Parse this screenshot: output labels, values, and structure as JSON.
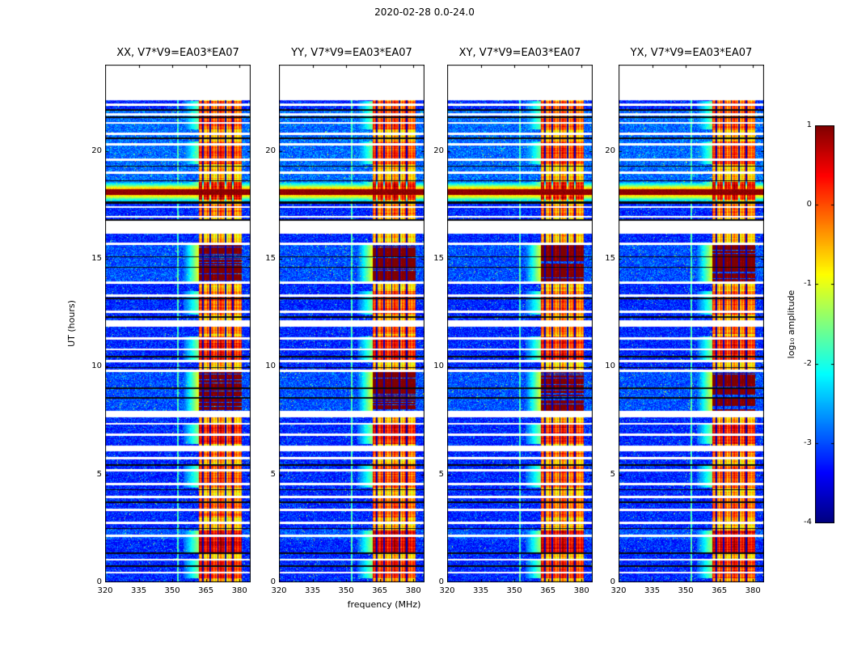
{
  "chart_data": {
    "type": "heatmap",
    "title": "2020-02-28 0.0-24.0",
    "xlabel": "frequency (MHz)",
    "ylabel": "UT (hours)",
    "value_label": "log₁₀ amplitude",
    "colormap": "jet",
    "panel_titles": [
      "XX, V7*V9=EA03*EA07",
      "YY, V7*V9=EA03*EA07",
      "XY, V7*V9=EA03*EA07",
      "YX, V7*V9=EA03*EA07"
    ],
    "x_range": [
      320,
      385
    ],
    "y_range": [
      0,
      24
    ],
    "value_range": [
      -4,
      1
    ],
    "x_ticks": [
      320,
      335,
      350,
      365,
      380
    ],
    "y_ticks": [
      0,
      5,
      10,
      15,
      20
    ],
    "colorbar_ticks": [
      1,
      0,
      -1,
      -2,
      -3,
      -4
    ],
    "data_top_hour": 22.35,
    "rfi_band": {
      "f0": 362,
      "f1": 381
    },
    "edge_bleed": [
      355,
      362
    ],
    "vertical_line_mhz": 352.5,
    "dark_band_lines_mhz": [
      363.6,
      367.0,
      370.4,
      373.8,
      377.2
    ],
    "flare": {
      "t": 18.1,
      "core_hw": 0.13,
      "halo_hw": 0.5
    },
    "bursts": [
      [
        13.95,
        15.65,
        1.9
      ],
      [
        7.95,
        9.75,
        1.9
      ],
      [
        17.75,
        18.55,
        1.1
      ],
      [
        0.2,
        1.1,
        0.8
      ],
      [
        1.4,
        2.4,
        1.2
      ],
      [
        3.0,
        4.0,
        0.5
      ],
      [
        4.4,
        5.4,
        0.6
      ],
      [
        5.8,
        6.1,
        0.5
      ],
      [
        6.4,
        7.3,
        0.9
      ],
      [
        10.3,
        11.4,
        0.9
      ],
      [
        11.5,
        11.9,
        0.5
      ],
      [
        12.4,
        13.5,
        0.6
      ],
      [
        16.9,
        17.5,
        0.4
      ],
      [
        19.4,
        20.45,
        0.7
      ],
      [
        21.0,
        22.3,
        0.6
      ]
    ],
    "bg_boost": [
      [
        17.7,
        21.9,
        0.5
      ],
      [
        13.95,
        15.65,
        0.3
      ],
      [
        7.95,
        9.75,
        0.3
      ],
      [
        2.0,
        2.45,
        0.35
      ]
    ],
    "white_gaps": [
      [
        16.45,
        0.3
      ],
      [
        12.0,
        0.15
      ],
      [
        7.8,
        0.15
      ],
      [
        6.2,
        0.13
      ],
      [
        22.15,
        0.05
      ],
      [
        21.7,
        0.05
      ],
      [
        21.3,
        0.05
      ],
      [
        20.8,
        0.05
      ],
      [
        20.3,
        0.05
      ],
      [
        19.6,
        0.05
      ],
      [
        19.0,
        0.05
      ],
      [
        17.4,
        0.05
      ],
      [
        16.95,
        0.05
      ],
      [
        15.7,
        0.05
      ],
      [
        13.9,
        0.05
      ],
      [
        13.3,
        0.05
      ],
      [
        12.55,
        0.05
      ],
      [
        11.3,
        0.05
      ],
      [
        10.8,
        0.05
      ],
      [
        10.25,
        0.05
      ],
      [
        9.8,
        0.05
      ],
      [
        7.35,
        0.05
      ],
      [
        6.85,
        0.05
      ],
      [
        5.75,
        0.06
      ],
      [
        5.2,
        0.05
      ],
      [
        4.55,
        0.05
      ],
      [
        3.95,
        0.05
      ],
      [
        3.35,
        0.05
      ],
      [
        2.75,
        0.05
      ],
      [
        2.15,
        0.05
      ],
      [
        1.05,
        0.05
      ],
      [
        0.45,
        0.05
      ]
    ],
    "black_lines": [
      [
        21.55,
        0.04
      ],
      [
        20.6,
        0.04
      ],
      [
        19.3,
        0.03
      ],
      [
        17.6,
        0.06
      ],
      [
        16.8,
        0.03
      ],
      [
        13.15,
        0.04
      ],
      [
        12.3,
        0.03
      ],
      [
        10.45,
        0.04
      ],
      [
        9.95,
        0.03
      ],
      [
        9.0,
        0.03
      ],
      [
        8.55,
        0.03
      ],
      [
        5.45,
        0.04
      ],
      [
        4.3,
        0.03
      ],
      [
        3.7,
        0.04
      ],
      [
        2.5,
        0.03
      ],
      [
        1.35,
        0.03
      ],
      [
        0.75,
        0.03
      ],
      [
        14.6,
        0.03
      ],
      [
        15.1,
        0.03
      ],
      [
        18.62,
        0.03
      ],
      [
        21.9,
        0.03
      ]
    ],
    "panel_gain": [
      1.0,
      1.0,
      0.94,
      0.97
    ],
    "seeds": [
      11,
      22,
      33,
      44
    ]
  }
}
